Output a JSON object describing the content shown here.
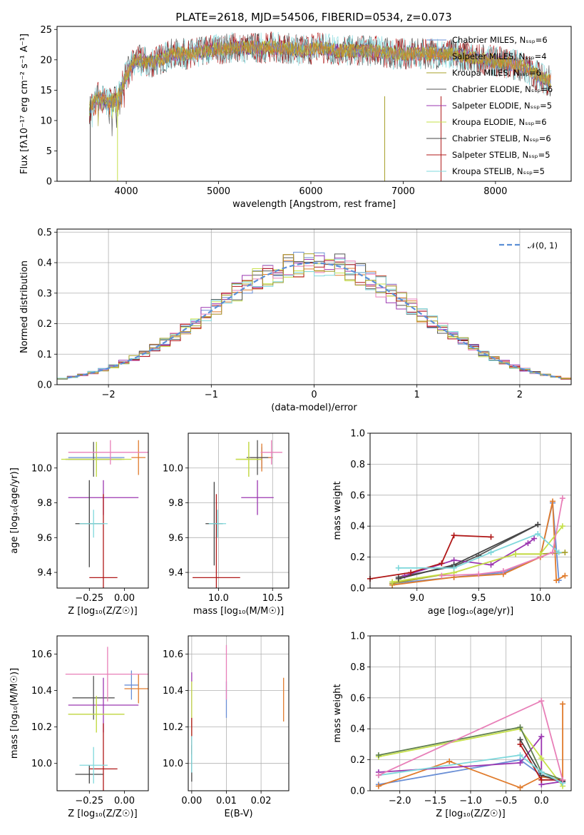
{
  "figure": {
    "title": "PLATE=2618, MJD=54506, FIBERID=0534, z=0.073"
  },
  "colors": {
    "Chabrier MILES": "#6a8fd6",
    "Salpeter MILES": "#e07b2c",
    "Kroupa MILES": "#a7a02a",
    "Chabrier ELODIE": "#555555",
    "Salpeter ELODIE": "#9b36b0",
    "Kroupa ELODIE": "#c6e04a",
    "Chabrier STELIB": "#444444",
    "Salpeter STELIB": "#b01818",
    "Kroupa STELIB": "#7fd8dc",
    "pink": "#e87fb8",
    "green": "#5f7f4f",
    "gaussian": "#5b8fd6"
  },
  "chart_data": [
    {
      "type": "line",
      "id": "spectrum",
      "xlabel": "wavelength [Angstrom, rest frame]",
      "ylabel": "Flux [fλ10⁻¹⁷ erg cm⁻² s⁻¹ A⁻¹]",
      "xlim": [
        3250,
        8820
      ],
      "ylim": [
        0,
        25.5
      ],
      "xticks": [
        "4000",
        "5000",
        "6000",
        "7000",
        "8000"
      ],
      "yticks": [
        "0",
        "5",
        "10",
        "15",
        "20",
        "25"
      ],
      "grid": false,
      "legend_position": "top-right",
      "legend": [
        "Chabrier MILES, N_SSP=6",
        "Salpeter MILES, N_SSP=4",
        "Kroupa MILES, N_SSP=6",
        "Chabrier ELODIE, N_SSP=6",
        "Salpeter ELODIE, N_SSP=5",
        "Kroupa ELODIE, N_SSP=6",
        "Chabrier STELIB, N_SSP=6",
        "Salpeter STELIB, N_SSP=5",
        "Kroupa STELIB, N_SSP=5"
      ],
      "series_names": [
        "Chabrier MILES",
        "Salpeter MILES",
        "Kroupa MILES",
        "Chabrier ELODIE",
        "Salpeter ELODIE",
        "Kroupa ELODIE",
        "Chabrier STELIB",
        "Salpeter STELIB",
        "Kroupa STELIB"
      ],
      "continuum": {
        "x": [
          3600,
          3700,
          3800,
          3900,
          4000,
          4100,
          4300,
          4500,
          4700,
          4900,
          5100,
          5300,
          5500,
          5700,
          5900,
          6100,
          6300,
          6500,
          6700,
          6900,
          7100,
          7300,
          7500,
          7700,
          7900,
          8100,
          8300,
          8500,
          8600
        ],
        "y": [
          12,
          14,
          13,
          13.5,
          17.5,
          20,
          19.5,
          21,
          21,
          21.5,
          22,
          22,
          22,
          22,
          21.5,
          22,
          21.5,
          21.5,
          21.5,
          21,
          21,
          21,
          21,
          20.5,
          20,
          19.5,
          19,
          17,
          16.5
        ]
      }
    },
    {
      "type": "bar",
      "id": "residuals",
      "xlabel": "(data-model)/error",
      "ylabel": "Normed distribution",
      "xlim": [
        -2.5,
        2.5
      ],
      "ylim": [
        0,
        0.51
      ],
      "xticks": [
        "−2",
        "−1",
        "0",
        "1",
        "2"
      ],
      "yticks": [
        "0.0",
        "0.1",
        "0.2",
        "0.3",
        "0.4",
        "0.5"
      ],
      "grid": true,
      "legend": [
        "𝒩(0, 1)"
      ],
      "legend_position": "top-right",
      "bin_width": 0.1,
      "mean_distribution": "normal(0,1)"
    },
    {
      "type": "scatter",
      "id": "age-vs-z",
      "xlabel": "Z [log₁₀(Z/Z☉)]",
      "ylabel": "age  [log₁₀(age/yr)]",
      "xlim": [
        -0.48,
        0.17
      ],
      "ylim": [
        9.31,
        10.2
      ],
      "xticks": [
        "−0.25",
        "0.00"
      ],
      "yticks": [
        "9.4",
        "9.6",
        "9.8",
        "10.0"
      ],
      "points": [
        {
          "x": -0.2,
          "y": 10.06,
          "xerr": 0.2,
          "yerr": 0.08,
          "series": "Chabrier MILES"
        },
        {
          "x": 0.1,
          "y": 10.06,
          "xerr": 0.05,
          "yerr": 0.1,
          "series": "Salpeter MILES"
        },
        {
          "x": -0.2,
          "y": 10.05,
          "xerr": 0.2,
          "yerr": 0.1,
          "series": "Kroupa MILES"
        },
        {
          "x": -0.22,
          "y": 10.05,
          "xerr": 0.2,
          "yerr": 0.1,
          "series": "Chabrier ELODIE"
        },
        {
          "x": -0.15,
          "y": 9.83,
          "xerr": 0.25,
          "yerr": 0.1,
          "series": "Salpeter ELODIE"
        },
        {
          "x": -0.2,
          "y": 10.05,
          "xerr": 0.25,
          "yerr": 0.1,
          "series": "Kroupa ELODIE"
        },
        {
          "x": -0.25,
          "y": 9.68,
          "xerr": 0.1,
          "yerr": 0.25,
          "series": "Chabrier STELIB"
        },
        {
          "x": -0.15,
          "y": 9.37,
          "xerr": 0.1,
          "yerr": 0.48,
          "series": "Salpeter STELIB"
        },
        {
          "x": -0.22,
          "y": 9.68,
          "xerr": 0.1,
          "yerr": 0.08,
          "series": "Kroupa STELIB"
        },
        {
          "x": -0.1,
          "y": 10.09,
          "xerr": 0.3,
          "yerr": 0.07,
          "series": "pink"
        }
      ]
    },
    {
      "type": "scatter",
      "id": "age-vs-mass",
      "xlabel": "mass [log₁₀(M/M☉)]",
      "ylabel": "",
      "xlim": [
        9.72,
        10.65
      ],
      "ylim": [
        9.31,
        10.2
      ],
      "xticks": [
        "10.0",
        "10.5"
      ],
      "yticks": [
        "9.4",
        "9.6",
        "9.8",
        "10.0"
      ],
      "points": [
        {
          "x": 10.4,
          "y": 10.06,
          "xerr": 0.1,
          "yerr": 0.06,
          "series": "Chabrier MILES"
        },
        {
          "x": 10.4,
          "y": 10.06,
          "xerr": 0.1,
          "yerr": 0.08,
          "series": "Salpeter MILES"
        },
        {
          "x": 10.28,
          "y": 10.05,
          "xerr": 0.12,
          "yerr": 0.1,
          "series": "Kroupa MILES"
        },
        {
          "x": 10.36,
          "y": 10.06,
          "xerr": 0.1,
          "yerr": 0.1,
          "series": "Chabrier ELODIE"
        },
        {
          "x": 10.36,
          "y": 9.83,
          "xerr": 0.15,
          "yerr": 0.1,
          "series": "Salpeter ELODIE"
        },
        {
          "x": 10.28,
          "y": 10.05,
          "xerr": 0.12,
          "yerr": 0.1,
          "series": "Kroupa ELODIE"
        },
        {
          "x": 9.96,
          "y": 9.68,
          "xerr": 0.08,
          "yerr": 0.24,
          "series": "Chabrier STELIB"
        },
        {
          "x": 9.98,
          "y": 9.37,
          "xerr": 0.22,
          "yerr": 0.48,
          "series": "Salpeter STELIB"
        },
        {
          "x": 9.99,
          "y": 9.68,
          "xerr": 0.08,
          "yerr": 0.08,
          "series": "Kroupa STELIB"
        },
        {
          "x": 10.49,
          "y": 10.09,
          "xerr": 0.1,
          "yerr": 0.07,
          "series": "pink"
        }
      ]
    },
    {
      "type": "line",
      "id": "massweight-vs-age",
      "xlabel": "age  [log₁₀(age/yr)]",
      "ylabel": "mass weight",
      "xlim": [
        8.62,
        10.25
      ],
      "ylim": [
        0,
        1
      ],
      "xticks": [
        "9.0",
        "9.5",
        "10.0"
      ],
      "yticks": [
        "0.0",
        "0.2",
        "0.4",
        "0.6",
        "0.8",
        "1.0"
      ],
      "grid": true,
      "series": [
        {
          "color": "#6a8fd6",
          "x": [
            8.8,
            9.3,
            9.7,
            10.0,
            10.1,
            10.15
          ],
          "y": [
            0.03,
            0.07,
            0.1,
            0.2,
            0.55,
            0.05
          ]
        },
        {
          "color": "#e07b2c",
          "x": [
            8.8,
            9.3,
            9.7,
            10.0,
            10.1,
            10.13,
            10.2
          ],
          "y": [
            0.02,
            0.07,
            0.09,
            0.2,
            0.56,
            0.05,
            0.08
          ]
        },
        {
          "color": "#a7a02a",
          "x": [
            8.8,
            9.3,
            9.8,
            10.0,
            10.2
          ],
          "y": [
            0.03,
            0.1,
            0.22,
            0.22,
            0.23
          ]
        },
        {
          "color": "#555555",
          "x": [
            8.85,
            9.3,
            9.5,
            9.98
          ],
          "y": [
            0.07,
            0.14,
            0.21,
            0.41
          ]
        },
        {
          "color": "#9b36b0",
          "x": [
            8.9,
            9.3,
            9.6,
            9.9,
            9.95
          ],
          "y": [
            0.08,
            0.18,
            0.15,
            0.29,
            0.32
          ]
        },
        {
          "color": "#c6e04a",
          "x": [
            8.8,
            9.3,
            9.8,
            10.0,
            10.18
          ],
          "y": [
            0.04,
            0.1,
            0.22,
            0.22,
            0.4
          ]
        },
        {
          "color": "#444444",
          "x": [
            8.85,
            9.3,
            9.98
          ],
          "y": [
            0.06,
            0.15,
            0.41
          ]
        },
        {
          "color": "#b01818",
          "x": [
            8.62,
            8.95,
            9.2,
            9.3,
            9.6
          ],
          "y": [
            0.06,
            0.1,
            0.16,
            0.34,
            0.33
          ]
        },
        {
          "color": "#7fd8dc",
          "x": [
            8.85,
            9.3,
            9.6,
            9.98,
            10.15
          ],
          "y": [
            0.13,
            0.13,
            0.23,
            0.35,
            0.23
          ]
        },
        {
          "color": "#e87fb8",
          "x": [
            9.2,
            9.5,
            9.7,
            10.1,
            10.18
          ],
          "y": [
            0.08,
            0.09,
            0.11,
            0.23,
            0.58
          ]
        }
      ]
    },
    {
      "type": "scatter",
      "id": "mass-vs-z",
      "xlabel": "Z [log₁₀(Z/Z☉)]",
      "ylabel": "mass [log₁₀(M/M☉)]",
      "xlim": [
        -0.48,
        0.17
      ],
      "ylim": [
        9.85,
        10.7
      ],
      "xticks": [
        "−0.25",
        "0.00"
      ],
      "yticks": [
        "10.0",
        "10.2",
        "10.4",
        "10.6"
      ],
      "points": [
        {
          "x": 0.05,
          "y": 10.43,
          "xerr": 0.05,
          "yerr": 0.08,
          "series": "Chabrier MILES"
        },
        {
          "x": 0.1,
          "y": 10.41,
          "xerr": 0.1,
          "yerr": 0.08,
          "series": "Salpeter MILES"
        },
        {
          "x": -0.2,
          "y": 10.27,
          "xerr": 0.2,
          "yerr": 0.1,
          "series": "Kroupa MILES"
        },
        {
          "x": -0.22,
          "y": 10.36,
          "xerr": 0.15,
          "yerr": 0.12,
          "series": "Chabrier ELODIE"
        },
        {
          "x": -0.15,
          "y": 10.32,
          "xerr": 0.25,
          "yerr": 0.15,
          "series": "Salpeter ELODIE"
        },
        {
          "x": -0.2,
          "y": 10.27,
          "xerr": 0.2,
          "yerr": 0.1,
          "series": "Kroupa ELODIE"
        },
        {
          "x": -0.25,
          "y": 9.94,
          "xerr": 0.1,
          "yerr": 0.05,
          "series": "Chabrier STELIB"
        },
        {
          "x": -0.15,
          "y": 9.97,
          "xerr": 0.1,
          "yerr": 0.25,
          "series": "Salpeter STELIB"
        },
        {
          "x": -0.22,
          "y": 9.99,
          "xerr": 0.1,
          "yerr": 0.1,
          "series": "Kroupa STELIB"
        },
        {
          "x": -0.12,
          "y": 10.49,
          "xerr": 0.3,
          "yerr": 0.15,
          "series": "pink"
        }
      ]
    },
    {
      "type": "scatter",
      "id": "mass-vs-ebv",
      "xlabel": "E(B-V)",
      "ylabel": "",
      "xlim": [
        -0.001,
        0.028
      ],
      "ylim": [
        9.85,
        10.7
      ],
      "xticks": [
        "0.00",
        "0.01",
        "0.02"
      ],
      "yticks": [
        "10.0",
        "10.2",
        "10.4",
        "10.6"
      ],
      "points": [
        {
          "x": 0.0,
          "y": 10.35,
          "yerr": 0.15,
          "series": "Salpeter ELODIE"
        },
        {
          "x": 0.0,
          "y": 10.3,
          "yerr": 0.15,
          "series": "Kroupa ELODIE"
        },
        {
          "x": 0.0,
          "y": 10.0,
          "yerr": 0.1,
          "series": "Chabrier STELIB"
        },
        {
          "x": 0.0,
          "y": 10.15,
          "yerr": 0.1,
          "series": "Salpeter STELIB"
        },
        {
          "x": 0.0,
          "y": 10.05,
          "yerr": 0.1,
          "series": "Kroupa STELIB"
        },
        {
          "x": 0.01,
          "y": 10.35,
          "yerr": 0.1,
          "series": "Chabrier MILES"
        },
        {
          "x": 0.01,
          "y": 10.5,
          "yerr": 0.15,
          "series": "pink"
        },
        {
          "x": 0.0265,
          "y": 10.35,
          "yerr": 0.12,
          "series": "Salpeter MILES"
        }
      ]
    },
    {
      "type": "line",
      "id": "massweight-vs-z",
      "xlabel": "Z [log₁₀(Z/Z☉)]",
      "ylabel": "mass weight",
      "xlim": [
        -2.42,
        0.42
      ],
      "ylim": [
        0,
        1
      ],
      "xticks": [
        "−2.0",
        "−1.5",
        "−1.0",
        "−0.5",
        "0.0"
      ],
      "yticks": [
        "0.0",
        "0.2",
        "0.4",
        "0.6",
        "0.8",
        "1.0"
      ],
      "grid": true,
      "series": [
        {
          "color": "#6a8fd6",
          "x": [
            -2.3,
            -0.3,
            0.0,
            0.3
          ],
          "y": [
            0.04,
            0.2,
            0.1,
            0.05
          ]
        },
        {
          "color": "#e07b2c",
          "x": [
            -2.3,
            -1.3,
            -0.3,
            0.0,
            0.3,
            0.3
          ],
          "y": [
            0.03,
            0.19,
            0.02,
            0.09,
            0.07,
            0.56
          ]
        },
        {
          "color": "#9b36b0",
          "x": [
            -2.3,
            -0.3,
            0.0,
            0.0,
            0.3
          ],
          "y": [
            0.12,
            0.18,
            0.35,
            0.04,
            0.06
          ]
        },
        {
          "color": "#c6e04a",
          "x": [
            -2.3,
            -0.3,
            0.0,
            0.3
          ],
          "y": [
            0.22,
            0.4,
            0.21,
            0.03
          ]
        },
        {
          "color": "#5f7f4f",
          "x": [
            -2.3,
            -0.3,
            0.0,
            0.3
          ],
          "y": [
            0.23,
            0.41,
            0.12,
            0.07
          ]
        },
        {
          "color": "#444444",
          "x": [
            -0.3,
            0.0,
            0.3
          ],
          "y": [
            0.33,
            0.1,
            0.06
          ]
        },
        {
          "color": "#b01818",
          "x": [
            -0.3,
            0.0,
            0.3
          ],
          "y": [
            0.3,
            0.07,
            0.07
          ]
        },
        {
          "color": "#7fd8dc",
          "x": [
            -2.3,
            -0.3,
            0.0,
            0.3
          ],
          "y": [
            0.1,
            0.23,
            0.12,
            0.05
          ]
        },
        {
          "color": "#e87fb8",
          "x": [
            -2.3,
            0.0,
            0.3
          ],
          "y": [
            0.1,
            0.58,
            0.07
          ]
        }
      ]
    }
  ]
}
